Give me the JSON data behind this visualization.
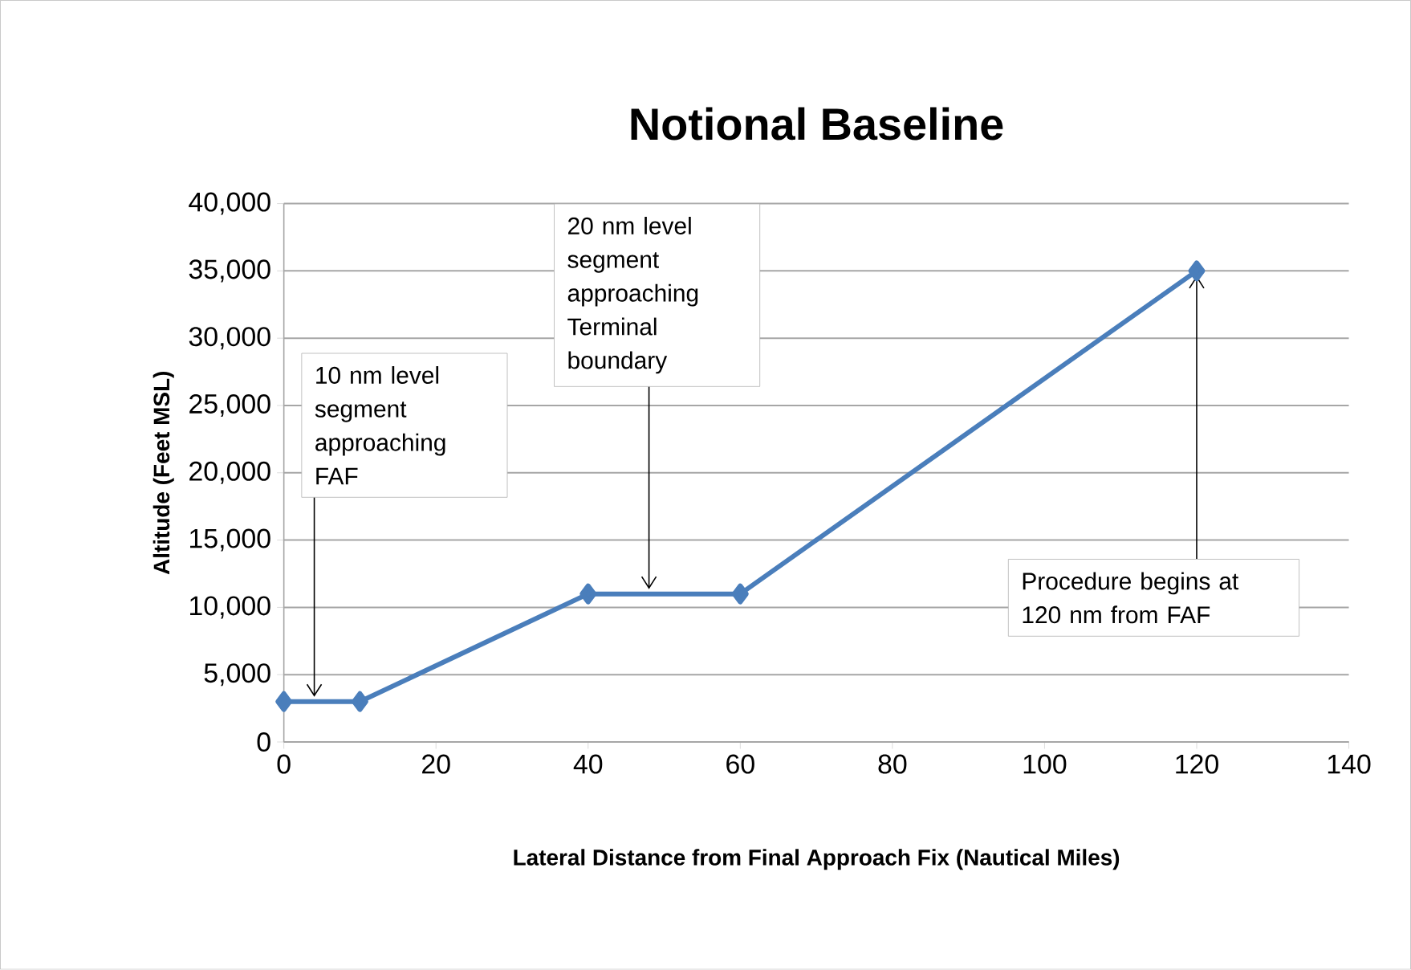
{
  "chart_data": {
    "type": "line",
    "title": "Notional Baseline",
    "xlabel": "Lateral Distance  from Final Approach Fix (Nautical Miles)",
    "ylabel": "Altitude (Feet MSL)",
    "x": [
      0,
      10,
      40,
      60,
      120
    ],
    "series": [
      {
        "color": "#4a7ebb",
        "values": [
          3000,
          3000,
          11000,
          11000,
          35000
        ]
      }
    ],
    "xlim": [
      0,
      140
    ],
    "xticks": [
      0,
      20,
      40,
      60,
      80,
      100,
      120,
      140
    ],
    "ylim": [
      0,
      40000
    ],
    "yticks": [
      {
        "value": 0,
        "label": "0"
      },
      {
        "value": 5000,
        "label": "5,000"
      },
      {
        "value": 10000,
        "label": "10,000"
      },
      {
        "value": 15000,
        "label": "15,000"
      },
      {
        "value": 20000,
        "label": "20,000"
      },
      {
        "value": 25000,
        "label": "25,000"
      },
      {
        "value": 30000,
        "label": "30,000"
      },
      {
        "value": 35000,
        "label": "35,000"
      },
      {
        "value": 40000,
        "label": "40,000"
      }
    ],
    "grid": "y",
    "marker": "diamond",
    "line_style": "solid",
    "annotations": [
      {
        "text": "10 nm level segment approaching FAF",
        "x": 4,
        "y": 3000
      },
      {
        "text": "20 nm level segment approaching Terminal boundary",
        "x": 48,
        "y": 11000
      },
      {
        "text": "Procedure begins at 120 nm from FAF",
        "x": 120,
        "y": 35000
      }
    ]
  }
}
